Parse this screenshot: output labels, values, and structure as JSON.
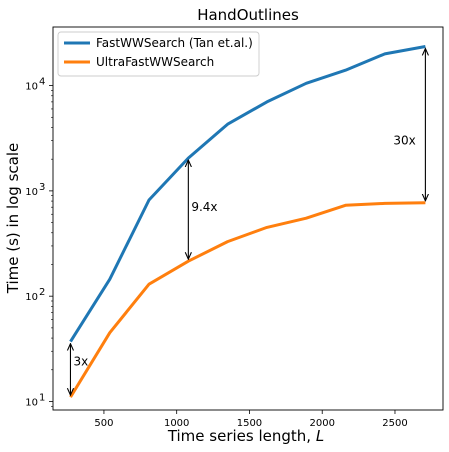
{
  "chart_data": {
    "type": "line",
    "title": "HandOutlines",
    "xlabel": "Time series length, ",
    "xlabel_var": "L",
    "ylabel": "Time (s) in log scale",
    "yscale": "log",
    "xlim": [
      150,
      2830
    ],
    "ylim": [
      8.3,
      36000
    ],
    "x_ticks": [
      500,
      1000,
      1500,
      2000,
      2500
    ],
    "y_ticks": [
      {
        "value": 10,
        "base": "10",
        "exp": "1"
      },
      {
        "value": 100,
        "base": "10",
        "exp": "2"
      },
      {
        "value": 1000,
        "base": "10",
        "exp": "3"
      },
      {
        "value": 10000,
        "base": "10",
        "exp": "4"
      }
    ],
    "grid": false,
    "legend_position": "top-left",
    "x": [
      270,
      540,
      810,
      1080,
      1350,
      1620,
      1890,
      2160,
      2430,
      2709
    ],
    "series": [
      {
        "name": "FastWWSearch (Tan et.al.)",
        "color": "#1f77b4",
        "values": [
          37,
          145,
          820,
          2050,
          4300,
          7000,
          10500,
          14000,
          20000,
          23500
        ]
      },
      {
        "name": "UltraFastWWSearch",
        "color": "#ff7f0e",
        "values": [
          11,
          45,
          130,
          215,
          330,
          450,
          550,
          730,
          760,
          770
        ]
      }
    ],
    "annotations": [
      {
        "text": "3x",
        "x": 270,
        "y_from": 11,
        "y_to": 37,
        "label_y": 24
      },
      {
        "text": "9.4x",
        "x": 1080,
        "y_from": 215,
        "y_to": 2050,
        "label_y": 700
      },
      {
        "text": "30x",
        "x": 2709,
        "y_from": 770,
        "y_to": 23500,
        "label_y": 3000
      }
    ]
  }
}
